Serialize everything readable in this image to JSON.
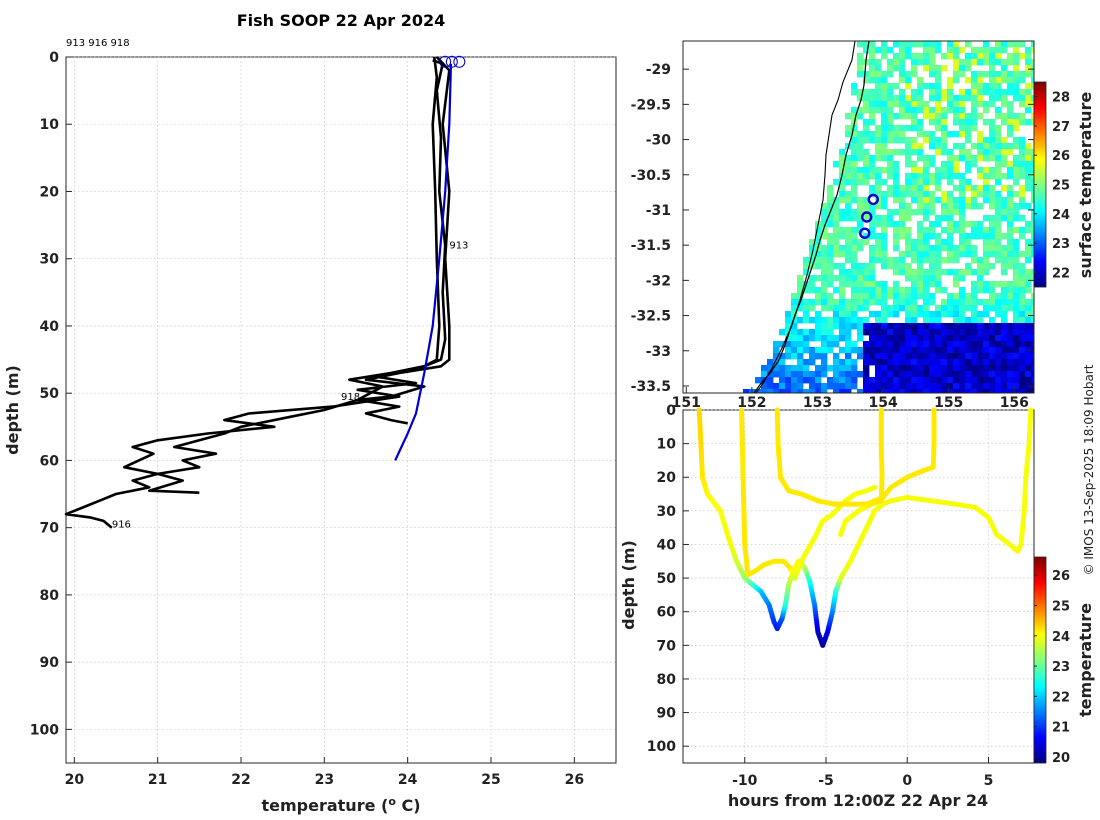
{
  "chart_data": [
    {
      "type": "line",
      "title": "Fish SOOP 22 Apr 2024",
      "xlabel": "temperature (° C)",
      "xlabel_parts": [
        "temperature (",
        "o",
        " C)"
      ],
      "ylabel": "depth (m)",
      "xlim": [
        19.9,
        26.5
      ],
      "ylim": [
        105,
        0
      ],
      "x_ticks": [
        20,
        21,
        22,
        23,
        24,
        25,
        26
      ],
      "y_ticks": [
        0,
        10,
        20,
        30,
        40,
        50,
        60,
        70,
        80,
        90,
        100
      ],
      "profile_ids_label": "913 916 918",
      "annotations": [
        {
          "text": "913",
          "x": 24.5,
          "y": 28.5
        },
        {
          "text": "918",
          "x": 23.2,
          "y": 51
        },
        {
          "text": "916",
          "x": 20.45,
          "y": 70
        }
      ],
      "series": [
        {
          "name": "profile 913",
          "color": "#000000",
          "points": [
            [
              24.3,
              0.5
            ],
            [
              24.42,
              1
            ],
            [
              24.35,
              5
            ],
            [
              24.4,
              12
            ],
            [
              24.38,
              20
            ],
            [
              24.45,
              28
            ],
            [
              24.42,
              35
            ],
            [
              24.45,
              42
            ],
            [
              24.4,
              45
            ],
            [
              24.2,
              46
            ],
            [
              23.8,
              47
            ],
            [
              23.3,
              48
            ],
            [
              23.7,
              49
            ],
            [
              23.4,
              51
            ],
            [
              23.9,
              52
            ],
            [
              23.5,
              53
            ],
            [
              23.8,
              54
            ],
            [
              24.0,
              54.5
            ]
          ]
        },
        {
          "name": "profile 916",
          "color": "#000000",
          "points": [
            [
              24.32,
              0
            ],
            [
              24.35,
              3
            ],
            [
              24.3,
              10
            ],
            [
              24.33,
              20
            ],
            [
              24.35,
              30
            ],
            [
              24.38,
              40
            ],
            [
              24.35,
              45
            ],
            [
              24.2,
              46
            ],
            [
              23.6,
              47.5
            ],
            [
              24.1,
              48.5
            ],
            [
              23.4,
              49.5
            ],
            [
              23.9,
              50.5
            ],
            [
              23.1,
              52
            ],
            [
              22.1,
              53
            ],
            [
              21.8,
              54
            ],
            [
              22.4,
              55
            ],
            [
              21.6,
              56
            ],
            [
              21.0,
              57
            ],
            [
              20.7,
              58
            ],
            [
              20.95,
              59
            ],
            [
              20.6,
              61
            ],
            [
              21.0,
              62
            ],
            [
              20.7,
              63
            ],
            [
              20.9,
              64
            ],
            [
              20.5,
              65
            ],
            [
              20.3,
              66
            ],
            [
              20.1,
              67
            ],
            [
              19.9,
              68
            ],
            [
              20.2,
              68.5
            ],
            [
              20.35,
              69
            ],
            [
              20.45,
              70
            ]
          ]
        },
        {
          "name": "profile 918",
          "color": "#000000",
          "points": [
            [
              24.35,
              0
            ],
            [
              24.5,
              2
            ],
            [
              24.42,
              10
            ],
            [
              24.5,
              20
            ],
            [
              24.45,
              30
            ],
            [
              24.5,
              40
            ],
            [
              24.5,
              45
            ],
            [
              24.4,
              46
            ],
            [
              23.9,
              47
            ],
            [
              23.5,
              48
            ],
            [
              24.2,
              49
            ],
            [
              23.8,
              50.5
            ],
            [
              23.4,
              51
            ],
            [
              23.0,
              52.5
            ],
            [
              22.6,
              53.5
            ],
            [
              22.0,
              55
            ],
            [
              21.8,
              56
            ],
            [
              21.5,
              57
            ],
            [
              21.2,
              58
            ],
            [
              21.7,
              59
            ],
            [
              21.3,
              60
            ],
            [
              21.5,
              61
            ],
            [
              21.0,
              62
            ],
            [
              21.3,
              63
            ],
            [
              20.9,
              64.5
            ],
            [
              21.5,
              64.8
            ]
          ]
        },
        {
          "name": "climatology",
          "color": "#0000cc",
          "points": [
            [
              24.52,
              1
            ],
            [
              24.5,
              10
            ],
            [
              24.45,
              20
            ],
            [
              24.38,
              30
            ],
            [
              24.3,
              40
            ],
            [
              24.2,
              47
            ],
            [
              24.1,
              53
            ],
            [
              24.0,
              56
            ],
            [
              23.85,
              60
            ]
          ]
        }
      ]
    },
    {
      "type": "heatmap",
      "xlim": [
        150.95,
        156.3
      ],
      "ylim": [
        -33.6,
        -28.6
      ],
      "x_ticks": [
        151,
        152,
        153,
        154,
        155,
        156
      ],
      "y_ticks": [
        -29,
        -29.5,
        -30,
        -30.5,
        -31,
        -31.5,
        -32,
        -32.5,
        -33,
        -33.5
      ],
      "y_tick_labels": [
        "-29",
        "-29.5",
        "-30",
        "-30.5",
        "-31",
        "-31.5",
        "-32",
        "-32.5",
        "-33",
        "-33.5"
      ],
      "colorbar": {
        "label": "surface temperature",
        "range": [
          21.5,
          28.5
        ],
        "ticks": [
          22,
          23,
          24,
          25,
          26,
          27,
          28
        ]
      },
      "profile_locations": [
        [
          153.85,
          -30.85
        ],
        [
          153.75,
          -31.1
        ],
        [
          153.72,
          -31.33
        ]
      ]
    },
    {
      "type": "scatter",
      "xlabel": "hours from 12:00Z 22 Apr 24",
      "ylabel": "depth (m)",
      "xlim": [
        -13.8,
        7.8
      ],
      "ylim": [
        105,
        0
      ],
      "x_ticks": [
        -10,
        -5,
        0,
        5
      ],
      "y_ticks": [
        0,
        10,
        20,
        30,
        40,
        50,
        60,
        70,
        80,
        90,
        100
      ],
      "colorbar": {
        "label": "temperature",
        "range": [
          19.8,
          26.6
        ],
        "ticks": [
          20,
          21,
          22,
          23,
          24,
          25,
          26
        ]
      },
      "segments": [
        {
          "points": [
            [
              -12.8,
              0,
              24.3
            ],
            [
              -12.7,
              10,
              24.3
            ],
            [
              -12.6,
              20,
              24.2
            ],
            [
              -12.3,
              25,
              24.1
            ],
            [
              -11.5,
              30,
              24.0
            ],
            [
              -11,
              38,
              24.0
            ],
            [
              -10.5,
              45,
              23.8
            ],
            [
              -10,
              50,
              23.4
            ],
            [
              -9.5,
              52,
              22.8
            ],
            [
              -9,
              54,
              22.0
            ],
            [
              -8.5,
              58,
              21.5
            ],
            [
              -8.2,
              63,
              21.0
            ],
            [
              -8,
              65,
              20.8
            ],
            [
              -7.7,
              62,
              21.2
            ],
            [
              -7.5,
              58,
              22.5
            ],
            [
              -7.3,
              52,
              23.5
            ],
            [
              -7.0,
              48,
              24.0
            ],
            [
              -6.7,
              45,
              24.1
            ],
            [
              -6.3,
              47,
              23.6
            ],
            [
              -6,
              51,
              22.5
            ],
            [
              -5.7,
              58,
              21.5
            ],
            [
              -5.5,
              66,
              20.3
            ],
            [
              -5.2,
              70,
              20.0
            ],
            [
              -4.9,
              66,
              20.5
            ],
            [
              -4.6,
              60,
              21.5
            ],
            [
              -4.4,
              54,
              22.5
            ],
            [
              -4.1,
              50,
              23.8
            ],
            [
              -3.5,
              45,
              24.0
            ],
            [
              -3.0,
              40,
              24.0
            ],
            [
              -2.5,
              35,
              24.0
            ],
            [
              -2,
              30,
              24.0
            ],
            [
              -1.5,
              28,
              24.0
            ],
            [
              -1.0,
              27,
              24.0
            ],
            [
              0,
              26,
              24.0
            ],
            [
              1.5,
              27,
              24.0
            ],
            [
              3,
              28,
              24.0
            ],
            [
              4.2,
              29,
              24.0
            ],
            [
              5,
              32,
              24.0
            ],
            [
              5.5,
              37,
              24.0
            ],
            [
              6.3,
              40,
              24.0
            ],
            [
              6.8,
              42,
              24.0
            ],
            [
              7.0,
              40,
              24.0
            ],
            [
              7.2,
              30,
              24.0
            ],
            [
              7.3,
              20,
              24.0
            ],
            [
              7.5,
              10,
              24.0
            ],
            [
              7.6,
              0,
              24.0
            ]
          ]
        },
        {
          "points": [
            [
              -10.2,
              0,
              24.2
            ],
            [
              -10.1,
              20,
              24.2
            ],
            [
              -10.0,
              40,
              24.2
            ],
            [
              -9.8,
              49,
              24.2
            ],
            [
              -9.4,
              48,
              24.2
            ],
            [
              -8.8,
              46,
              24.2
            ],
            [
              -8.2,
              45,
              24.2
            ],
            [
              -7.6,
              45,
              24.2
            ],
            [
              -7.2,
              47,
              24.2
            ],
            [
              -6.9,
              50,
              23.8
            ],
            [
              -6.7,
              47,
              24.0
            ],
            [
              -6.3,
              43,
              24.0
            ],
            [
              -5.7,
              38,
              24.0
            ],
            [
              -5.2,
              33,
              24.0
            ],
            [
              -4.6,
              31,
              24.0
            ],
            [
              -4.2,
              29,
              24.0
            ],
            [
              -3.8,
              27,
              24.0
            ],
            [
              -3.2,
              25,
              24.0
            ],
            [
              -2.5,
              24,
              24.0
            ],
            [
              -2,
              23,
              24.0
            ]
          ]
        },
        {
          "points": [
            [
              -8.0,
              0,
              24.2
            ],
            [
              -7.95,
              10,
              24.2
            ],
            [
              -7.8,
              20,
              24.2
            ],
            [
              -7.3,
              24,
              24.2
            ],
            [
              -6.5,
              25,
              24.2
            ],
            [
              -5.5,
              27,
              24.2
            ],
            [
              -4.5,
              28,
              24.2
            ],
            [
              -3.5,
              28,
              24.2
            ],
            [
              -2.5,
              28,
              24.2
            ],
            [
              -1.5,
              26,
              24.2
            ],
            [
              -1.0,
              23,
              24.2
            ],
            [
              0,
              20,
              24.2
            ],
            [
              1,
              18,
              24.2
            ],
            [
              1.6,
              17,
              24.2
            ],
            [
              1.65,
              10,
              24.2
            ],
            [
              1.65,
              0,
              24.2
            ]
          ]
        },
        {
          "points": [
            [
              -1.6,
              0,
              24.2
            ],
            [
              -1.6,
              10,
              24.2
            ],
            [
              -1.55,
              20,
              24.2
            ],
            [
              -1.6,
              27,
              24.2
            ],
            [
              -2.2,
              28,
              24.2
            ],
            [
              -3.0,
              30,
              24.0
            ],
            [
              -3.8,
              33,
              24.0
            ],
            [
              -4.1,
              37,
              24.0
            ]
          ]
        }
      ]
    }
  ],
  "footer": {
    "credit": "© IMOS 13-Sep-2025 18:09 Hobart"
  }
}
